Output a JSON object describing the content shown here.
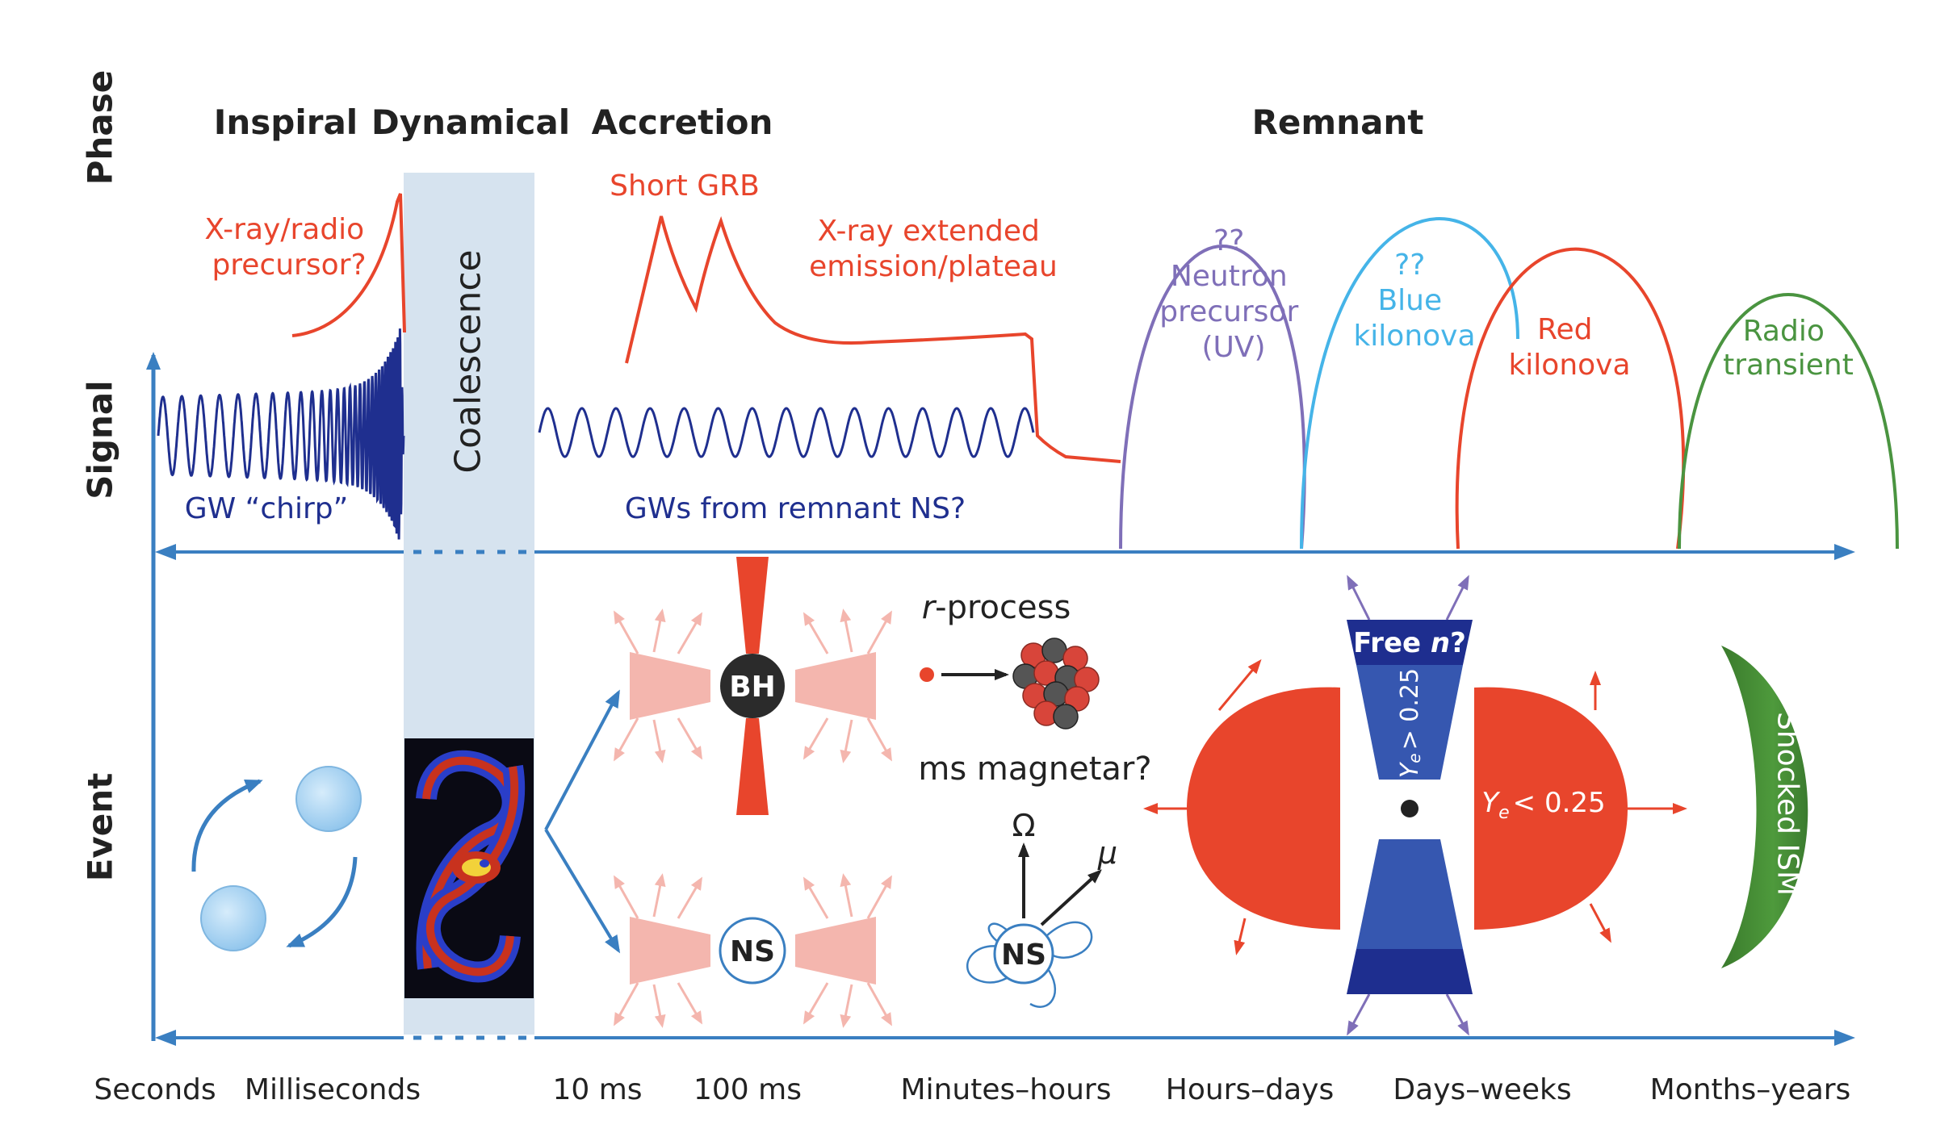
{
  "row_labels": {
    "phase": "Phase",
    "signal": "Signal",
    "event": "Event"
  },
  "phases": {
    "inspiral": "Inspiral",
    "dynamical": "Dynamical",
    "accretion": "Accretion",
    "remnant": "Remnant"
  },
  "coalescence": "Coalescence",
  "signals": {
    "precursor": [
      "X-ray/radio",
      "precursor?"
    ],
    "short_grb": "Short GRB",
    "extended": [
      "X-ray extended",
      "emission/plateau"
    ],
    "gw_chirp": "GW “chirp”",
    "gw_remnant": "GWs from remnant NS?",
    "neutron_precursor": [
      "??",
      "Neutron",
      "precursor",
      "(UV)"
    ],
    "blue_kilonova": [
      "??",
      "Blue",
      "kilonova"
    ],
    "red_kilonova": [
      "Red",
      "kilonova"
    ],
    "radio_transient": [
      "Radio",
      "transient"
    ]
  },
  "events": {
    "bh": "BH",
    "ns": "NS",
    "r_process_italic": "r",
    "r_process_rest": "-process",
    "magnetar": "ms magnetar?",
    "omega": "Ω",
    "mu": "μ",
    "free_n_prefix": "Free ",
    "free_n_var": "n",
    "free_n_suffix": "?",
    "ye_gt": "> 0.25",
    "ye_lt": "< 0.25",
    "ye_symbol": "Y",
    "ye_sub": "e",
    "shocked_ism": "Shocked ISM"
  },
  "time_axis": [
    "Seconds",
    "Milliseconds",
    "10 ms",
    "100 ms",
    "Minutes–hours",
    "Hours–days",
    "Days–weeks",
    "Months–years"
  ],
  "colors": {
    "axis": "#3a7fc1",
    "gw": "#1f2f8f",
    "xray": "#e8452c",
    "neutron": "#7f6fb8",
    "blue_kilonova": "#45b4e8",
    "red_kilonova": "#e8452c",
    "radio": "#4a9440",
    "coalescence_band": "#d6e3ef",
    "ejecta_pink": "#f4b6ae"
  }
}
